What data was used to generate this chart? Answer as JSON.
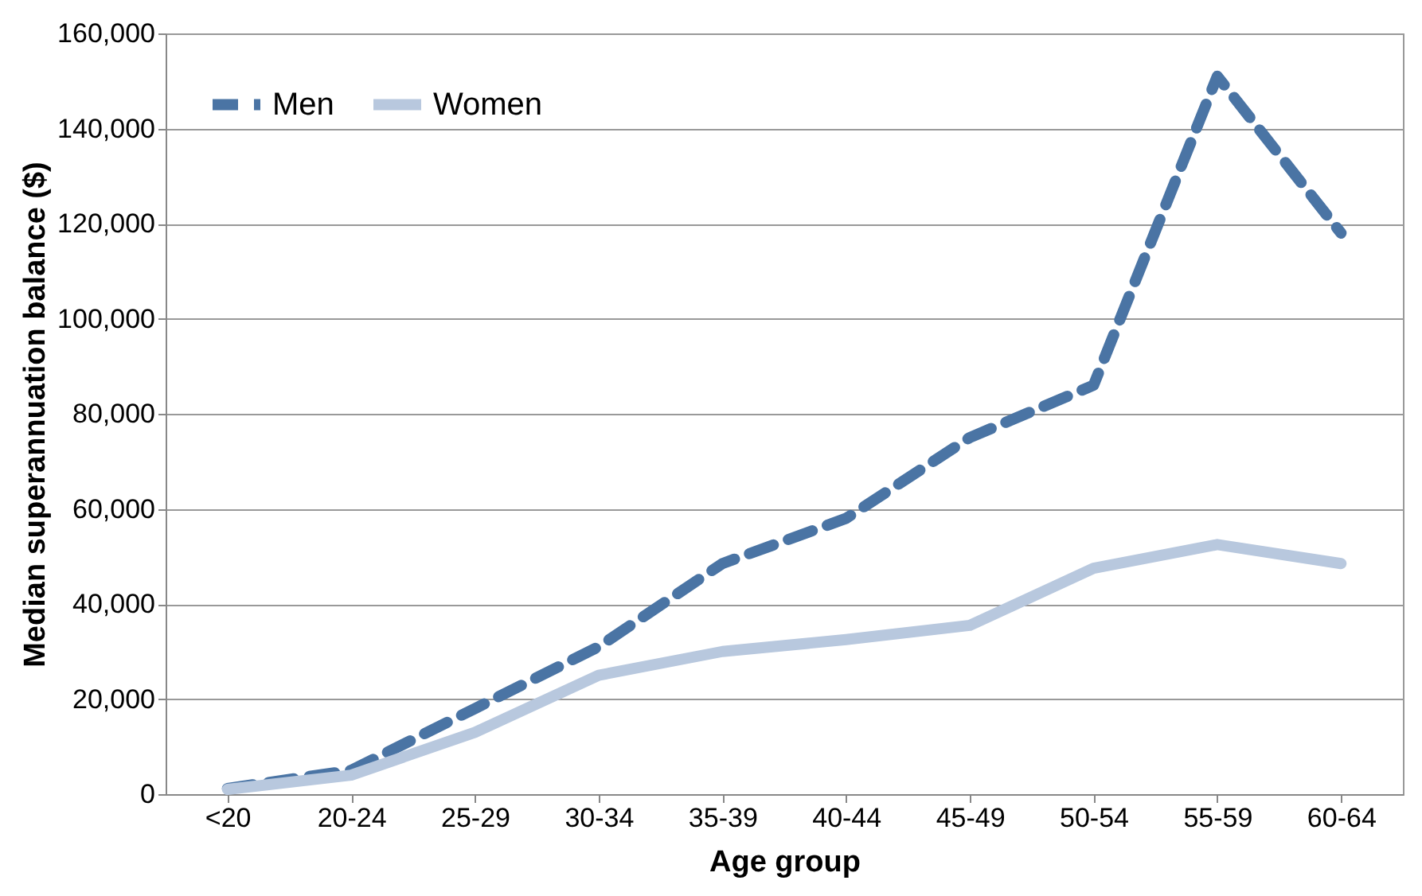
{
  "chart_data": {
    "type": "line",
    "xlabel": "Age group",
    "ylabel": "Median superannuation balance ($)",
    "categories": [
      "<20",
      "20-24",
      "25-29",
      "30-34",
      "35-39",
      "40-44",
      "45-49",
      "50-54",
      "55-59",
      "60-64"
    ],
    "series": [
      {
        "name": "Men",
        "color": "#4a74a4",
        "line_style": "dashed",
        "values": [
          1200,
          5000,
          18000,
          31000,
          48500,
          58000,
          75000,
          86000,
          151000,
          118000
        ]
      },
      {
        "name": "Women",
        "color": "#b8c8de",
        "line_style": "solid",
        "values": [
          1000,
          4000,
          13000,
          25000,
          30000,
          32500,
          35500,
          47500,
          52500,
          48500
        ]
      }
    ],
    "ylim": [
      0,
      160000
    ],
    "yticks": [
      0,
      {
        "value": 20000,
        "label": "20,000"
      },
      {
        "value": 40000,
        "label": "40,000"
      },
      {
        "value": 60000,
        "label": "60,000"
      },
      {
        "value": 80000,
        "label": "80,000"
      },
      {
        "value": 100000,
        "label": "100,000"
      },
      {
        "value": 120000,
        "label": "120,000"
      },
      {
        "value": 140000,
        "label": "140,000"
      },
      {
        "value": 160000,
        "label": "160,000"
      }
    ],
    "grid": "y",
    "legend": "top left",
    "marker": "none"
  }
}
